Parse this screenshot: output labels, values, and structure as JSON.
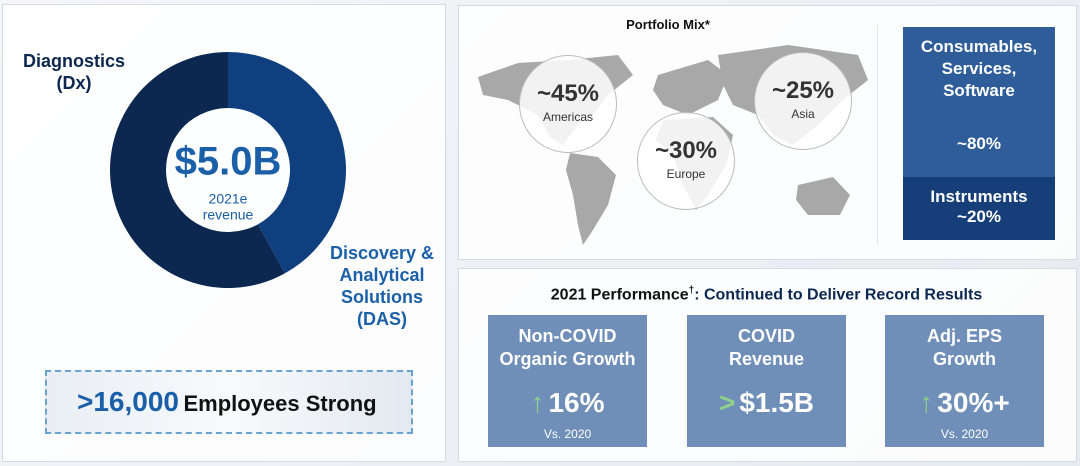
{
  "revenue_donut": {
    "type": "donut",
    "center": {
      "value": "$5.0B",
      "label_lines": [
        "2021e",
        "revenue"
      ]
    },
    "segments": [
      {
        "label_lines": [
          "Discovery &",
          "Analytical",
          "Solutions",
          "(DAS)"
        ],
        "value": 42,
        "color": "#0f3f7e"
      },
      {
        "label_lines": [
          "Diagnostics",
          "(Dx)"
        ],
        "value": 58,
        "color": "#0c2750"
      }
    ]
  },
  "employees": {
    "value": ">16,000",
    "label": "Employees Strong"
  },
  "portfolio_mix": {
    "title": "Portfolio Mix*",
    "regions": [
      {
        "share": "~45%",
        "name": "Americas"
      },
      {
        "share": "~30%",
        "name": "Europe"
      },
      {
        "share": "~25%",
        "name": "Asia"
      }
    ],
    "products": [
      {
        "name_lines": [
          "Consumables,",
          "Services,",
          "Software"
        ],
        "share": "~80%"
      },
      {
        "name_lines": [
          "Instruments"
        ],
        "share": "~20%"
      }
    ]
  },
  "performance": {
    "title": "2021 Performance",
    "title_mark": "†",
    "title_rest": ": Continued to Deliver Record Results",
    "cards": [
      {
        "title_lines": [
          "Non-COVID",
          "Organic Growth"
        ],
        "prefix": "↑",
        "value": "16%",
        "note": "Vs. 2020"
      },
      {
        "title_lines": [
          "COVID",
          "Revenue"
        ],
        "prefix": ">",
        "value": "$1.5B"
      },
      {
        "title_lines": [
          "Adj. EPS",
          "Growth"
        ],
        "prefix": "↑",
        "value": "30%+",
        "note": "Vs. 2020"
      }
    ]
  }
}
